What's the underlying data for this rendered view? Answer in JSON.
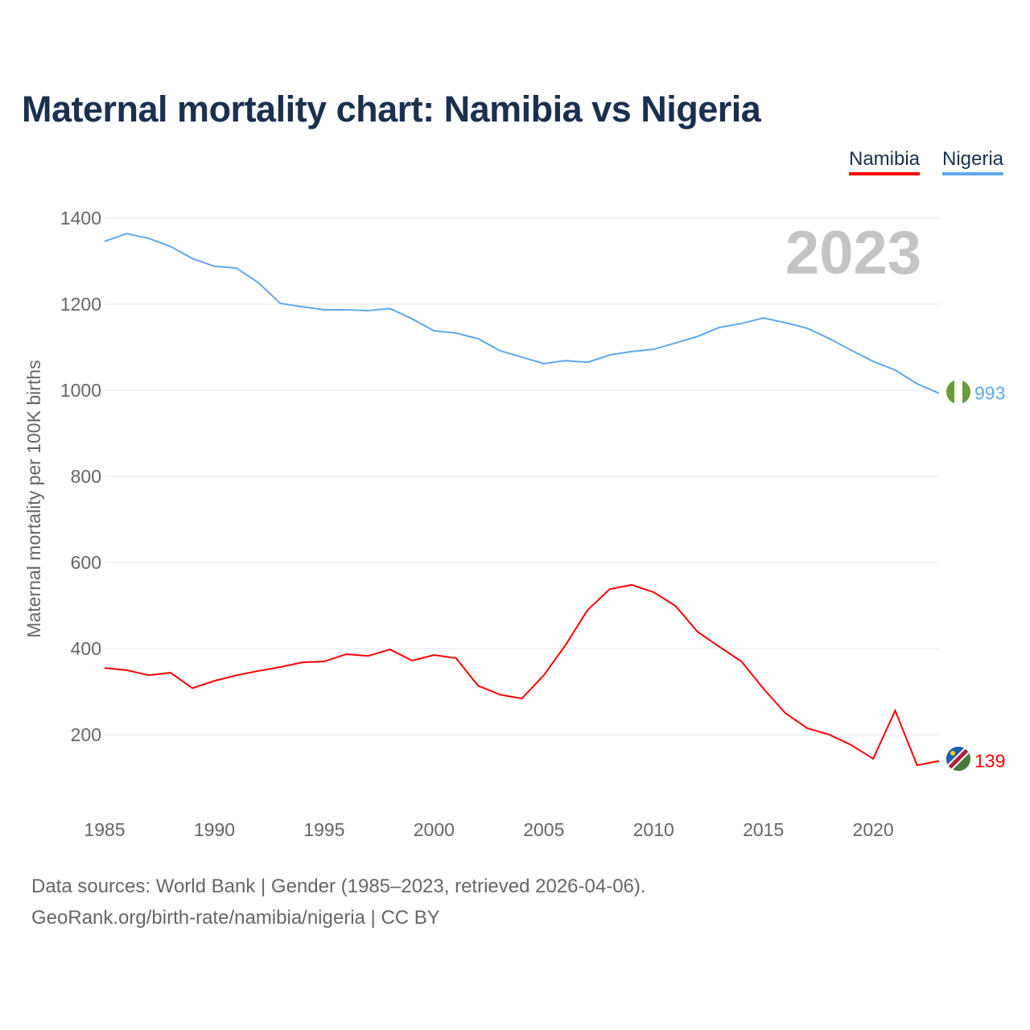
{
  "title": "Maternal mortality chart: Namibia vs Nigeria",
  "legend": {
    "namibia": "Namibia",
    "nigeria": "Nigeria"
  },
  "footer": {
    "line1": "Data sources: World Bank | Gender (1985–2023, retrieved 2026-04-06).",
    "line2": "GeoRank.org/birth-rate/namibia/nigeria | CC BY"
  },
  "chart_data": {
    "type": "line",
    "title": "Maternal mortality chart: Namibia vs Nigeria",
    "ylabel": "Maternal mortality per 100K births",
    "xlabel": "",
    "year_label": "2023",
    "xlim": [
      1985,
      2023
    ],
    "ylim": [
      0,
      1400
    ],
    "xticks": [
      "1985",
      "1990",
      "1995",
      "2000",
      "2005",
      "2010",
      "2015",
      "2020"
    ],
    "yticks": [
      "200",
      "400",
      "600",
      "800",
      "1000",
      "1200",
      "1400"
    ],
    "grid": true,
    "legend_position": "top-right",
    "x": [
      1985,
      1986,
      1987,
      1988,
      1989,
      1990,
      1991,
      1992,
      1993,
      1994,
      1995,
      1996,
      1997,
      1998,
      1999,
      2000,
      2001,
      2002,
      2003,
      2004,
      2005,
      2006,
      2007,
      2008,
      2009,
      2010,
      2011,
      2012,
      2013,
      2014,
      2015,
      2016,
      2017,
      2018,
      2019,
      2020,
      2021,
      2022,
      2023
    ],
    "series": [
      {
        "name": "Nigeria",
        "color": "#5fa8ec",
        "end_label": "993",
        "values": [
          1346,
          1364,
          1353,
          1334,
          1306,
          1288,
          1284,
          1250,
          1202,
          1194,
          1187,
          1187,
          1185,
          1190,
          1166,
          1138,
          1133,
          1120,
          1092,
          1077,
          1062,
          1069,
          1065,
          1082,
          1090,
          1095,
          1110,
          1125,
          1146,
          1155,
          1168,
          1157,
          1144,
          1120,
          1093,
          1067,
          1047,
          1015,
          993
        ]
      },
      {
        "name": "Namibia",
        "color": "#ff0000",
        "end_label": "139",
        "values": [
          355,
          350,
          338,
          344,
          308,
          325,
          338,
          348,
          357,
          368,
          370,
          387,
          383,
          398,
          372,
          385,
          378,
          314,
          293,
          284,
          338,
          409,
          490,
          538,
          548,
          531,
          499,
          439,
          404,
          370,
          307,
          250,
          215,
          200,
          176,
          144,
          256,
          129,
          139
        ]
      }
    ]
  }
}
